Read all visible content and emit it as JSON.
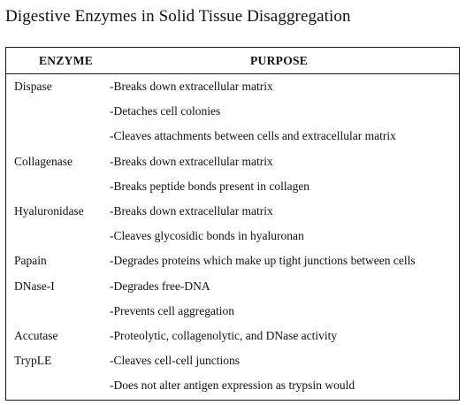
{
  "title": "Digestive Enzymes in Solid Tissue Disaggregation",
  "table": {
    "headers": {
      "enzyme": "ENZYME",
      "purpose": "PURPOSE"
    },
    "rows": [
      {
        "enzyme": "Dispase",
        "purpose": "-Breaks down extracellular matrix"
      },
      {
        "enzyme": "",
        "purpose": "-Detaches cell colonies"
      },
      {
        "enzyme": "",
        "purpose": "-Cleaves attachments between cells and extracellular matrix"
      },
      {
        "enzyme": "Collagenase",
        "purpose": "-Breaks down extracellular matrix"
      },
      {
        "enzyme": "",
        "purpose": "-Breaks peptide bonds present in collagen"
      },
      {
        "enzyme": "Hyaluronidase",
        "purpose": "-Breaks down extracellular matrix"
      },
      {
        "enzyme": "",
        "purpose": "-Cleaves glycosidic bonds in hyaluronan"
      },
      {
        "enzyme": "Papain",
        "purpose": "-Degrades proteins which make up tight junctions between cells"
      },
      {
        "enzyme": "DNase-I",
        "purpose": "-Degrades free-DNA"
      },
      {
        "enzyme": "",
        "purpose": "-Prevents cell aggregation"
      },
      {
        "enzyme": "Accutase",
        "purpose": "-Proteolytic, collagenolytic, and DNase activity"
      },
      {
        "enzyme": "TrypLE",
        "purpose": "-Cleaves cell-cell junctions"
      },
      {
        "enzyme": "",
        "purpose": "-Does not alter antigen expression as trypsin would"
      }
    ]
  }
}
